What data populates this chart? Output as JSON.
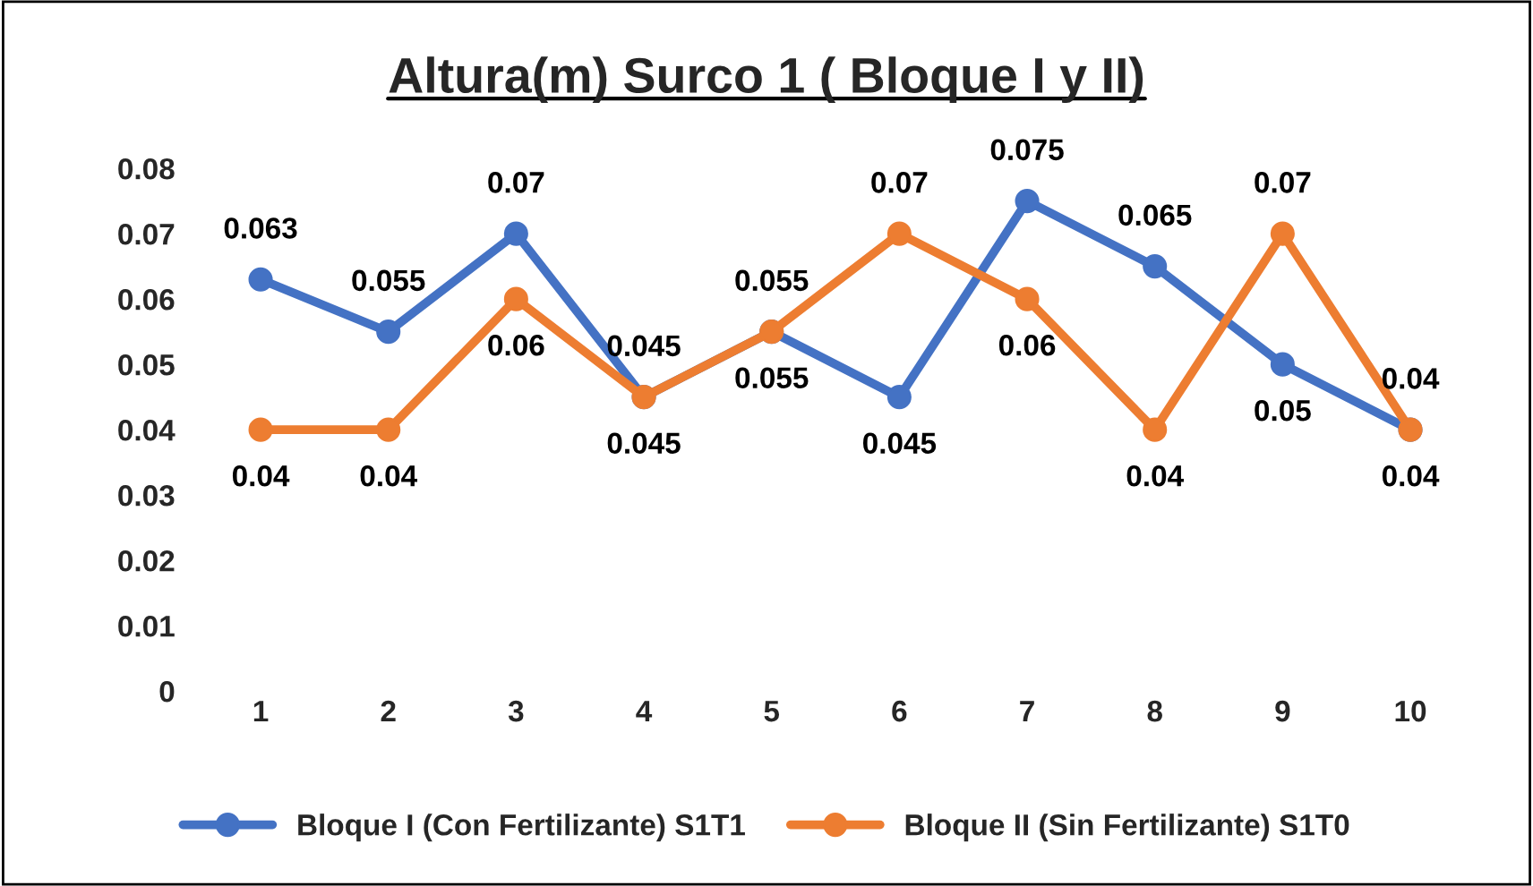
{
  "chart_data": {
    "type": "line",
    "title": "Altura(m) Surco 1 ( Bloque I y II)",
    "categories": [
      "1",
      "2",
      "3",
      "4",
      "5",
      "6",
      "7",
      "8",
      "9",
      "10"
    ],
    "series": [
      {
        "name": "Bloque I (Con Fertilizante) S1T1",
        "color": "#4472c4",
        "values": [
          0.063,
          0.055,
          0.07,
          0.045,
          0.055,
          0.045,
          0.075,
          0.065,
          0.05,
          0.04
        ]
      },
      {
        "name": "Bloque II (Sin Fertilizante) S1T0",
        "color": "#ed7d31",
        "values": [
          0.04,
          0.04,
          0.06,
          0.045,
          0.055,
          0.07,
          0.06,
          0.04,
          0.07,
          0.04
        ]
      }
    ],
    "ylim": [
      0,
      0.08
    ],
    "yticks": [
      0,
      0.01,
      0.02,
      0.03,
      0.04,
      0.05,
      0.06,
      0.07,
      0.08
    ],
    "grid": false,
    "legend": "bottom",
    "marker": "circle",
    "line_style": "solid",
    "data_labels": true
  }
}
